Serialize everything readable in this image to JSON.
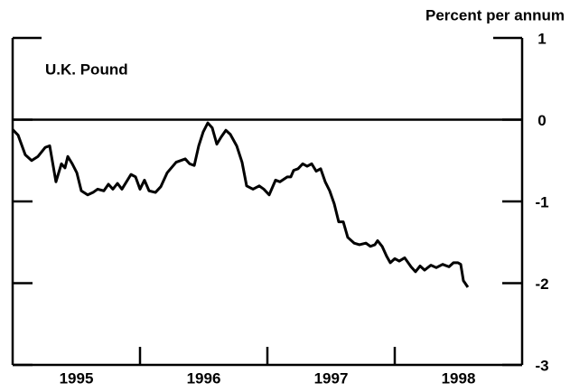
{
  "chart_data": {
    "type": "line",
    "title": "U.K. Pound",
    "y_label": "Percent per annum",
    "series": [
      {
        "color": "#000000",
        "x": [
          1995.0,
          1995.043,
          1995.099,
          1995.149,
          1995.199,
          1995.255,
          1995.291,
          1995.34,
          1995.383,
          1995.411,
          1995.433,
          1995.468,
          1995.504,
          1995.539,
          1995.589,
          1995.631,
          1995.667,
          1995.716,
          1995.752,
          1995.787,
          1995.823,
          1995.858,
          1995.929,
          1995.965,
          1996.0,
          1996.035,
          1996.071,
          1996.121,
          1996.163,
          1996.213,
          1996.284,
          1996.355,
          1996.39,
          1996.426,
          1996.461,
          1996.496,
          1996.532,
          1996.567,
          1996.603,
          1996.638,
          1996.674,
          1996.709,
          1996.759,
          1996.801,
          1996.837,
          1996.887,
          1996.936,
          1996.972,
          1997.014,
          1997.064,
          1997.099,
          1997.156,
          1997.184,
          1997.206,
          1997.241,
          1997.277,
          1997.312,
          1997.348,
          1997.383,
          1997.418,
          1997.454,
          1997.489,
          1997.525,
          1997.56,
          1997.596,
          1997.631,
          1997.681,
          1997.723,
          1997.773,
          1997.809,
          1997.844,
          1997.865,
          1997.901,
          1997.936,
          1997.965,
          1998.0,
          1998.035,
          1998.078,
          1998.128,
          1998.163,
          1998.199,
          1998.234,
          1998.284,
          1998.326,
          1998.376,
          1998.426,
          1998.461,
          1998.496,
          1998.518,
          1998.539,
          1998.574
        ],
        "values": [
          -0.12,
          -0.19,
          -0.43,
          -0.5,
          -0.45,
          -0.34,
          -0.32,
          -0.76,
          -0.54,
          -0.59,
          -0.45,
          -0.54,
          -0.65,
          -0.87,
          -0.92,
          -0.89,
          -0.85,
          -0.87,
          -0.79,
          -0.85,
          -0.78,
          -0.85,
          -0.67,
          -0.7,
          -0.85,
          -0.74,
          -0.87,
          -0.89,
          -0.82,
          -0.65,
          -0.52,
          -0.48,
          -0.54,
          -0.56,
          -0.32,
          -0.15,
          -0.04,
          -0.1,
          -0.3,
          -0.21,
          -0.13,
          -0.18,
          -0.32,
          -0.52,
          -0.81,
          -0.85,
          -0.81,
          -0.85,
          -0.92,
          -0.74,
          -0.76,
          -0.7,
          -0.7,
          -0.62,
          -0.6,
          -0.54,
          -0.57,
          -0.54,
          -0.63,
          -0.6,
          -0.76,
          -0.87,
          -1.03,
          -1.25,
          -1.25,
          -1.44,
          -1.51,
          -1.53,
          -1.51,
          -1.55,
          -1.53,
          -1.48,
          -1.55,
          -1.67,
          -1.75,
          -1.7,
          -1.73,
          -1.69,
          -1.8,
          -1.86,
          -1.79,
          -1.84,
          -1.78,
          -1.81,
          -1.77,
          -1.8,
          -1.75,
          -1.75,
          -1.77,
          -1.97,
          -2.05
        ]
      }
    ],
    "xlim": [
      1995,
      1999
    ],
    "xticks": [
      1996,
      1997,
      1998
    ],
    "xtick_labels": [
      {
        "value": 1995.5,
        "label": "1995"
      },
      {
        "value": 1996.5,
        "label": "1996"
      },
      {
        "value": 1997.5,
        "label": "1997"
      },
      {
        "value": 1998.5,
        "label": "1998"
      }
    ],
    "ylim": [
      -3,
      1
    ],
    "yticks": [
      1,
      0,
      -1,
      -2,
      -3
    ],
    "zero_line": true
  }
}
